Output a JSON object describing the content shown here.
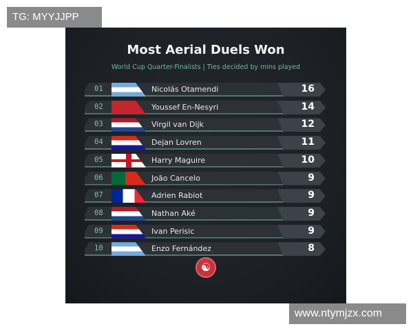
{
  "watermarks": {
    "top_left": "TG: MYYJJPP",
    "bottom_right": "www.ntymjzx.com"
  },
  "title": "Most Aerial Duels Won",
  "subtitle": "World Cup Quarter-Finalists | Ties decided by mins played",
  "rows": [
    {
      "rank": "01",
      "flag": "argentina",
      "name": "Nicolás Otamendi",
      "value": "16"
    },
    {
      "rank": "02",
      "flag": "morocco",
      "name": "Youssef En-Nesyri",
      "value": "14"
    },
    {
      "rank": "03",
      "flag": "netherlands",
      "name": "Virgil van Dijk",
      "value": "12"
    },
    {
      "rank": "04",
      "flag": "croatia",
      "name": "Dejan Lovren",
      "value": "11"
    },
    {
      "rank": "05",
      "flag": "england",
      "name": "Harry Maguire",
      "value": "10"
    },
    {
      "rank": "06",
      "flag": "portugal",
      "name": "João Cancelo",
      "value": "9"
    },
    {
      "rank": "07",
      "flag": "france",
      "name": "Adrien Rabiot",
      "value": "9"
    },
    {
      "rank": "08",
      "flag": "netherlands",
      "name": "Nathan Aké",
      "value": "9"
    },
    {
      "rank": "09",
      "flag": "croatia",
      "name": "Ivan Perisic",
      "value": "9"
    },
    {
      "rank": "10",
      "flag": "argentina",
      "name": "Enzo Fernández",
      "value": "8"
    }
  ],
  "colors": {
    "accent": "#6fb8a2",
    "logo": "#c8323a"
  }
}
